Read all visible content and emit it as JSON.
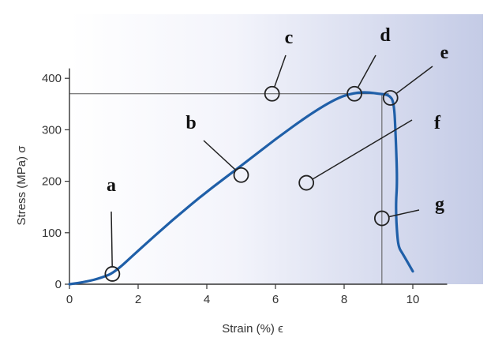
{
  "chart_data": {
    "type": "line",
    "title": "",
    "xlabel": "Strain (%) ϵ",
    "ylabel": "Stress (MPa) σ",
    "xlim": [
      0,
      11
    ],
    "ylim": [
      0,
      410
    ],
    "x_ticks": [
      0,
      2,
      4,
      6,
      8,
      10
    ],
    "y_ticks": [
      0,
      100,
      200,
      300,
      400
    ],
    "grid": false,
    "legend": "none",
    "colors": {
      "curve": "#1f5fa8",
      "background_light": "#ffffff",
      "background_dark": "#c4cbe6",
      "lines": "#555555"
    },
    "series": [
      {
        "x": [
          0,
          0.5,
          0.9,
          1.3,
          2,
          3,
          4,
          5,
          6,
          7,
          7.8,
          8.3,
          8.7,
          9.0,
          9.3,
          9.45,
          9.5,
          9.55,
          9.5,
          9.55,
          9.6,
          9.7,
          10.0
        ],
        "y": [
          0,
          5,
          12,
          22,
          65,
          125,
          180,
          230,
          282,
          330,
          362,
          372,
          373,
          370,
          368,
          355,
          290,
          200,
          150,
          90,
          70,
          60,
          25
        ]
      }
    ],
    "reference_lines": {
      "horizontal_stress": 370,
      "vertical_strain": 9.1
    },
    "annotations": [
      {
        "letter": "a",
        "point": [
          1.25,
          20
        ]
      },
      {
        "letter": "b",
        "point": [
          5.0,
          212
        ]
      },
      {
        "letter": "c",
        "point": [
          5.9,
          370
        ]
      },
      {
        "letter": "d",
        "point": [
          8.3,
          370
        ]
      },
      {
        "letter": "e",
        "point": [
          9.35,
          362
        ]
      },
      {
        "letter": "f",
        "point": [
          6.9,
          197
        ]
      },
      {
        "letter": "g",
        "point": [
          9.1,
          128
        ]
      }
    ]
  }
}
